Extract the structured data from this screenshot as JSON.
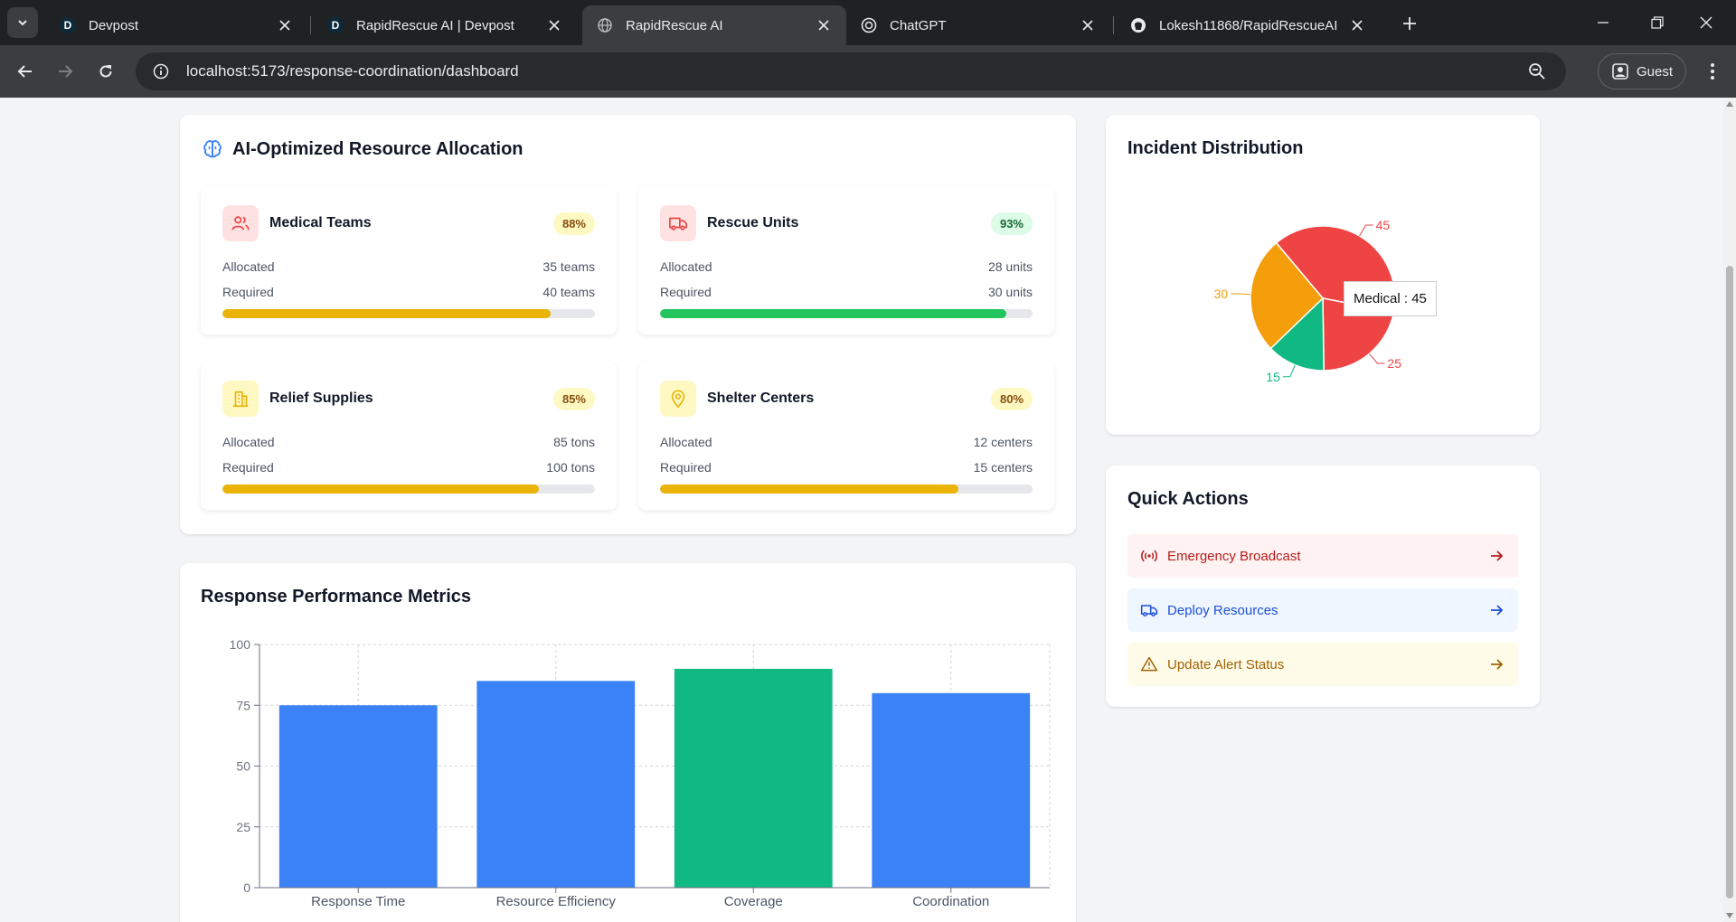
{
  "browser": {
    "tabs": [
      {
        "title": "Devpost",
        "favicon": "D"
      },
      {
        "title": "RapidRescue AI | Devpost",
        "favicon": "D"
      },
      {
        "title": "RapidRescue AI",
        "favicon": "globe-icon"
      },
      {
        "title": "ChatGPT",
        "favicon": "chatgpt-icon"
      },
      {
        "title": "Lokesh11868/RapidRescueAI",
        "favicon": "github-icon"
      }
    ],
    "url": "localhost:5173/response-coordination/dashboard",
    "profile_label": "Guest"
  },
  "allocation": {
    "title": "AI-Optimized Resource Allocation",
    "allocated_label": "Allocated",
    "required_label": "Required",
    "resources": [
      {
        "name": "Medical Teams",
        "percent": "88%",
        "progress": 0.88,
        "allocated": "35 teams",
        "required": "40 teams",
        "bar_color": "#eab308",
        "badge_bg": "#fef9c3",
        "badge_fg": "#854d0e",
        "icon": "users-icon",
        "icon_bg": "#fee2e2",
        "icon_fg": "#ef4444"
      },
      {
        "name": "Rescue Units",
        "percent": "93%",
        "progress": 0.93,
        "allocated": "28 units",
        "required": "30 units",
        "bar_color": "#22c55e",
        "badge_bg": "#dcfce7",
        "badge_fg": "#166534",
        "icon": "truck-icon",
        "icon_bg": "#fee2e2",
        "icon_fg": "#ef4444"
      },
      {
        "name": "Relief Supplies",
        "percent": "85%",
        "progress": 0.85,
        "allocated": "85 tons",
        "required": "100 tons",
        "bar_color": "#eab308",
        "badge_bg": "#fef9c3",
        "badge_fg": "#854d0e",
        "icon": "building-icon",
        "icon_bg": "#fef9c3",
        "icon_fg": "#eab308"
      },
      {
        "name": "Shelter Centers",
        "percent": "80%",
        "progress": 0.8,
        "allocated": "12 centers",
        "required": "15 centers",
        "bar_color": "#eab308",
        "badge_bg": "#fef9c3",
        "badge_fg": "#854d0e",
        "icon": "map-pin-icon",
        "icon_bg": "#fef9c3",
        "icon_fg": "#eab308"
      }
    ]
  },
  "incident": {
    "title": "Incident Distribution",
    "tooltip": "Medical : 45"
  },
  "quick_actions": {
    "title": "Quick Actions",
    "items": [
      {
        "label": "Emergency Broadcast",
        "icon": "radio-icon",
        "bg": "#fef2f2",
        "fg": "#b91c1c"
      },
      {
        "label": "Deploy Resources",
        "icon": "truck-icon",
        "bg": "#eff6ff",
        "fg": "#1d4ed8"
      },
      {
        "label": "Update Alert Status",
        "icon": "alert-triangle-icon",
        "bg": "#fefce8",
        "fg": "#a16207"
      }
    ]
  },
  "metrics": {
    "title": "Response Performance Metrics"
  },
  "chart_data": [
    {
      "type": "pie",
      "title": "Incident Distribution",
      "slices": [
        {
          "name": "Medical",
          "value": 45,
          "color": "#ef4444"
        },
        {
          "value": 25,
          "color": "#ef4444"
        },
        {
          "value": 15,
          "color": "#10b981"
        },
        {
          "value": 30,
          "color": "#f59e0b"
        }
      ]
    },
    {
      "type": "bar",
      "title": "Response Performance Metrics",
      "categories": [
        "Response Time",
        "Resource Efficiency",
        "Coverage",
        "Coordination"
      ],
      "values": [
        75,
        85,
        90,
        80
      ],
      "colors": [
        "#3b82f6",
        "#3b82f6",
        "#10b981",
        "#3b82f6"
      ],
      "ylim": [
        0,
        100
      ],
      "yticks": [
        0,
        25,
        50,
        75,
        100
      ],
      "grid": true
    }
  ]
}
